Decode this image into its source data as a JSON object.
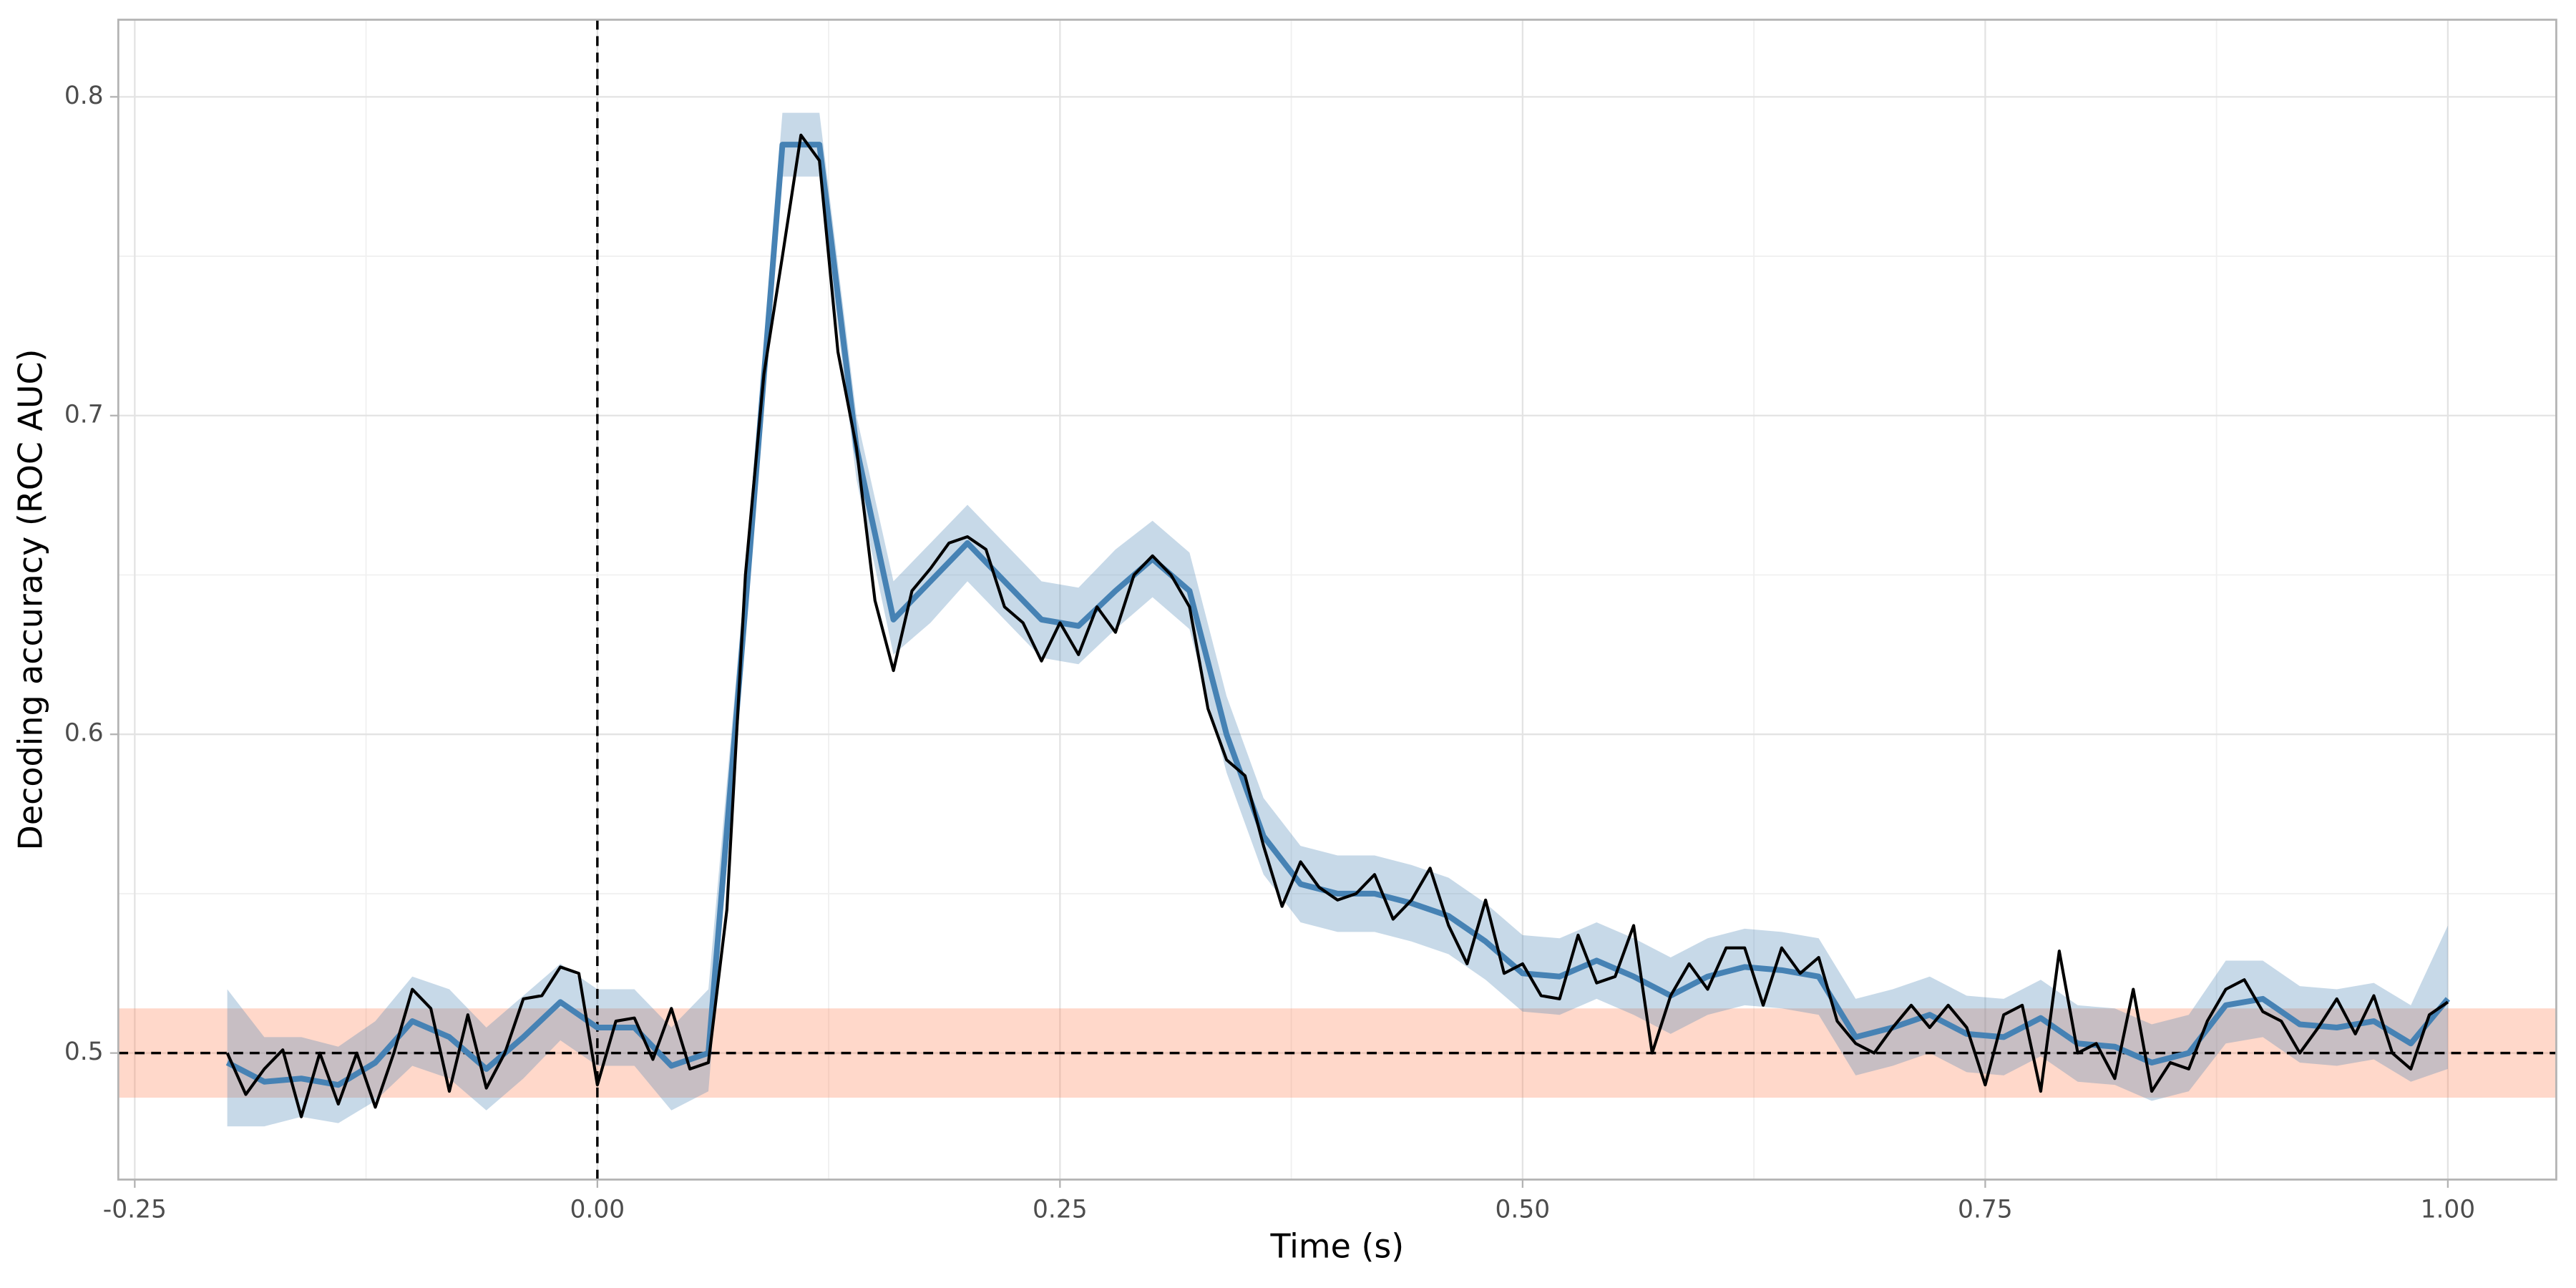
{
  "chart_data": {
    "type": "line",
    "xlabel": "Time (s)",
    "ylabel": "Decoding accuracy (ROC AUC)",
    "xlim": [
      -0.2589,
      1.0586
    ],
    "ylim": [
      0.4603,
      0.8242
    ],
    "xticks": [
      -0.25,
      {
        "value": 0,
        "label": "0.00"
      },
      0.25,
      {
        "value": 0.5,
        "label": "0.50"
      },
      0.75,
      {
        "value": 1,
        "label": "1.00"
      }
    ],
    "yticks": [
      0.5,
      0.6,
      0.7,
      0.8
    ],
    "xminorticks": [
      -0.125,
      0.125,
      0.375,
      0.625,
      0.875
    ],
    "yminorticks": [
      0.55,
      0.65,
      0.75
    ],
    "grid": true,
    "chance_band": [
      0.486,
      0.514
    ],
    "chance_color": "#ff7f50",
    "hline": 0.5,
    "vline": 0,
    "series": [
      {
        "kind": "ribbon-line",
        "color": "#4682b4",
        "x": [
          -0.2,
          -0.18,
          -0.16,
          -0.14,
          -0.12,
          -0.1,
          -0.08,
          -0.06,
          -0.04,
          -0.02,
          0,
          0.02,
          0.04,
          0.06,
          0.08,
          0.1,
          0.12,
          0.14,
          0.16,
          0.18,
          0.2,
          0.22,
          0.24,
          0.26,
          0.28,
          0.3,
          0.32,
          0.34,
          0.36,
          0.38,
          0.4,
          0.42,
          0.44,
          0.46,
          0.48,
          0.5,
          0.52,
          0.54,
          0.56,
          0.58,
          0.6,
          0.62,
          0.64,
          0.66,
          0.68,
          0.7,
          0.72,
          0.74,
          0.76,
          0.78,
          0.8,
          0.82,
          0.84,
          0.86,
          0.88,
          0.9,
          0.92,
          0.94,
          0.96,
          0.98,
          1.0
        ],
        "values": [
          0.497,
          0.491,
          0.492,
          0.49,
          0.497,
          0.51,
          0.505,
          0.495,
          0.505,
          0.516,
          0.508,
          0.508,
          0.496,
          0.5,
          0.64,
          0.785,
          0.785,
          0.69,
          0.636,
          0.648,
          0.66,
          0.648,
          0.636,
          0.634,
          0.645,
          0.655,
          0.645,
          0.6,
          0.568,
          0.553,
          0.55,
          0.55,
          0.547,
          0.543,
          0.535,
          0.525,
          0.524,
          0.529,
          0.524,
          0.518,
          0.524,
          0.527,
          0.526,
          0.524,
          0.505,
          0.508,
          0.512,
          0.506,
          0.505,
          0.511,
          0.503,
          0.502,
          0.497,
          0.5,
          0.515,
          0.517,
          0.509,
          0.508,
          0.51,
          0.503,
          0.517
        ],
        "lower": [
          0.477,
          0.477,
          0.48,
          0.478,
          0.485,
          0.496,
          0.492,
          0.482,
          0.492,
          0.504,
          0.496,
          0.496,
          0.482,
          0.488,
          0.63,
          0.775,
          0.775,
          0.68,
          0.625,
          0.635,
          0.648,
          0.636,
          0.624,
          0.622,
          0.633,
          0.643,
          0.633,
          0.588,
          0.556,
          0.541,
          0.538,
          0.538,
          0.535,
          0.531,
          0.523,
          0.513,
          0.512,
          0.517,
          0.512,
          0.506,
          0.512,
          0.515,
          0.514,
          0.512,
          0.493,
          0.496,
          0.5,
          0.494,
          0.493,
          0.499,
          0.491,
          0.49,
          0.485,
          0.488,
          0.503,
          0.505,
          0.497,
          0.496,
          0.498,
          0.491,
          0.495
        ],
        "upper": [
          0.52,
          0.505,
          0.505,
          0.502,
          0.51,
          0.524,
          0.52,
          0.508,
          0.518,
          0.528,
          0.52,
          0.52,
          0.508,
          0.52,
          0.65,
          0.795,
          0.795,
          0.7,
          0.648,
          0.66,
          0.672,
          0.66,
          0.648,
          0.646,
          0.658,
          0.667,
          0.657,
          0.612,
          0.58,
          0.565,
          0.562,
          0.562,
          0.559,
          0.555,
          0.547,
          0.537,
          0.536,
          0.541,
          0.536,
          0.53,
          0.536,
          0.539,
          0.538,
          0.536,
          0.517,
          0.52,
          0.524,
          0.518,
          0.517,
          0.523,
          0.515,
          0.514,
          0.509,
          0.512,
          0.529,
          0.529,
          0.521,
          0.52,
          0.522,
          0.515,
          0.54
        ]
      },
      {
        "kind": "line",
        "color": "#000000",
        "x": [
          -0.2,
          -0.19,
          -0.18,
          -0.17,
          -0.16,
          -0.15,
          -0.14,
          -0.13,
          -0.12,
          -0.11,
          -0.1,
          -0.09,
          -0.08,
          -0.07,
          -0.06,
          -0.05,
          -0.04,
          -0.03,
          -0.02,
          -0.01,
          0,
          0.01,
          0.02,
          0.03,
          0.04,
          0.05,
          0.06,
          0.07,
          0.08,
          0.09,
          0.1,
          0.11,
          0.12,
          0.13,
          0.14,
          0.15,
          0.16,
          0.17,
          0.18,
          0.19,
          0.2,
          0.21,
          0.22,
          0.23,
          0.24,
          0.25,
          0.26,
          0.27,
          0.28,
          0.29,
          0.3,
          0.31,
          0.32,
          0.33,
          0.34,
          0.35,
          0.36,
          0.37,
          0.38,
          0.39,
          0.4,
          0.41,
          0.42,
          0.43,
          0.44,
          0.45,
          0.46,
          0.47,
          0.48,
          0.49,
          0.5,
          0.51,
          0.52,
          0.53,
          0.54,
          0.55,
          0.56,
          0.57,
          0.58,
          0.59,
          0.6,
          0.61,
          0.62,
          0.63,
          0.64,
          0.65,
          0.66,
          0.67,
          0.68,
          0.69,
          0.7,
          0.71,
          0.72,
          0.73,
          0.74,
          0.75,
          0.76,
          0.77,
          0.78,
          0.79,
          0.8,
          0.81,
          0.82,
          0.83,
          0.84,
          0.85,
          0.86,
          0.87,
          0.88,
          0.89,
          0.9,
          0.91,
          0.92,
          0.93,
          0.94,
          0.95,
          0.96,
          0.97,
          0.98,
          0.99,
          1.0
        ],
        "values": [
          0.5,
          0.487,
          0.495,
          0.501,
          0.48,
          0.5,
          0.484,
          0.5,
          0.483,
          0.5,
          0.52,
          0.514,
          0.488,
          0.512,
          0.489,
          0.5,
          0.517,
          0.518,
          0.527,
          0.525,
          0.49,
          0.51,
          0.511,
          0.498,
          0.514,
          0.495,
          0.497,
          0.545,
          0.65,
          0.713,
          0.75,
          0.788,
          0.78,
          0.72,
          0.69,
          0.642,
          0.62,
          0.645,
          0.652,
          0.66,
          0.662,
          0.658,
          0.64,
          0.635,
          0.623,
          0.635,
          0.625,
          0.64,
          0.632,
          0.65,
          0.656,
          0.65,
          0.64,
          0.608,
          0.592,
          0.587,
          0.565,
          0.546,
          0.56,
          0.552,
          0.548,
          0.55,
          0.556,
          0.542,
          0.548,
          0.558,
          0.54,
          0.528,
          0.548,
          0.525,
          0.528,
          0.518,
          0.517,
          0.537,
          0.522,
          0.524,
          0.54,
          0.5,
          0.518,
          0.528,
          0.52,
          0.533,
          0.533,
          0.515,
          0.533,
          0.525,
          0.53,
          0.51,
          0.503,
          0.5,
          0.508,
          0.515,
          0.508,
          0.515,
          0.508,
          0.49,
          0.512,
          0.515,
          0.488,
          0.532,
          0.5,
          0.503,
          0.492,
          0.52,
          0.488,
          0.497,
          0.495,
          0.51,
          0.52,
          0.523,
          0.513,
          0.51,
          0.5,
          0.508,
          0.517,
          0.506,
          0.518,
          0.5,
          0.495,
          0.512,
          0.516
        ]
      }
    ]
  }
}
